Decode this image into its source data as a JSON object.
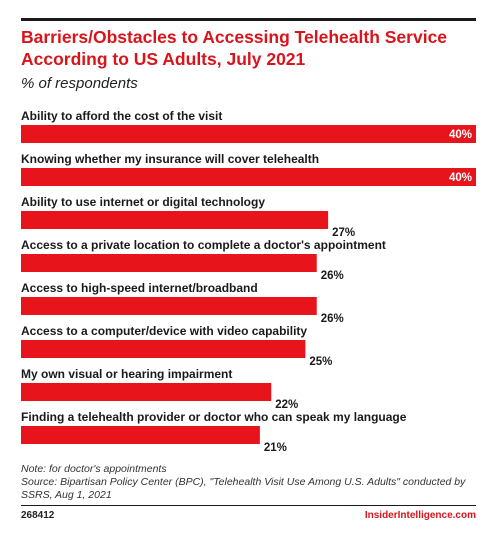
{
  "header": {
    "title": "Barriers/Obstacles to Accessing Telehealth Service According to US Adults, July 2021",
    "subtitle": "% of respondents"
  },
  "chart_data": {
    "type": "bar",
    "orientation": "horizontal",
    "title": "Barriers/Obstacles to Accessing Telehealth Service According to US Adults, July 2021",
    "subtitle": "% of respondents",
    "categories": [
      "Ability to afford the cost of the visit",
      "Knowing whether my insurance will cover telehealth",
      "Ability to use internet or digital technology",
      "Access to a private location to complete a doctor's appointment",
      "Access to high-speed internet/broadband",
      "Access to a computer/device with video capability",
      "My own visual or hearing impairment",
      "Finding a telehealth provider or doctor who can speak my language"
    ],
    "values": [
      40,
      40,
      27,
      26,
      26,
      25,
      22,
      21
    ],
    "value_labels": [
      "40%",
      "40%",
      "27%",
      "26%",
      "26%",
      "25%",
      "22%",
      "21%"
    ],
    "xlim": [
      0,
      40
    ],
    "unit": "%",
    "grid": false,
    "bar_color": "#e8141b"
  },
  "notes": {
    "note": "Note: for doctor's appointments",
    "source": "Source: Bipartisan Policy Center (BPC), \"Telehealth Visit Use Among U.S. Adults\" conducted by SSRS, Aug 1, 2021"
  },
  "footer": {
    "id": "268412",
    "brand": "InsiderIntelligence.com"
  }
}
